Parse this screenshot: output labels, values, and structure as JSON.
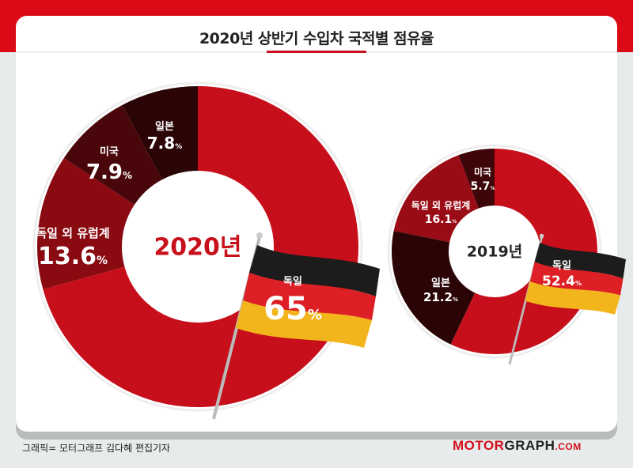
{
  "chart_data": [
    {
      "type": "pie",
      "title": "2020년 상반기 수입차 국적별 점유율",
      "center_label": "2020년",
      "slices": [
        {
          "label": "독일",
          "value": 65,
          "display": "65",
          "color": "#c70f1b"
        },
        {
          "label": "독일 외 유럽계",
          "value": 13.6,
          "display": "13.6",
          "color": "#8a0a12"
        },
        {
          "label": "미국",
          "value": 7.9,
          "display": "7.9",
          "color": "#4a070b"
        },
        {
          "label": "일본",
          "value": 7.8,
          "display": "7.8",
          "color": "#2b0406"
        }
      ],
      "unit": "%"
    },
    {
      "type": "pie",
      "center_label": "2019년",
      "slices": [
        {
          "label": "독일",
          "value": 52.4,
          "display": "52.4",
          "color": "#c70f1b"
        },
        {
          "label": "일본",
          "value": 21.2,
          "display": "21.2",
          "color": "#2b0406"
        },
        {
          "label": "독일 외 유럽계",
          "value": 16.1,
          "display": "16.1",
          "color": "#9a0c15"
        },
        {
          "label": "미국",
          "value": 5.7,
          "display": "5.7",
          "color": "#3e0609"
        }
      ],
      "unit": "%"
    }
  ],
  "header": {
    "title": "2020년 상반기 수입차 국적별 점유율"
  },
  "footer": {
    "credit": "그래픽= 모터그래프 김다혜 편집기자",
    "logo_a": "MOTOR",
    "logo_b": "GRAPH",
    "logo_c": ".COM"
  },
  "colors": {
    "accent": "#c8101c",
    "band": "#dc0a17"
  }
}
